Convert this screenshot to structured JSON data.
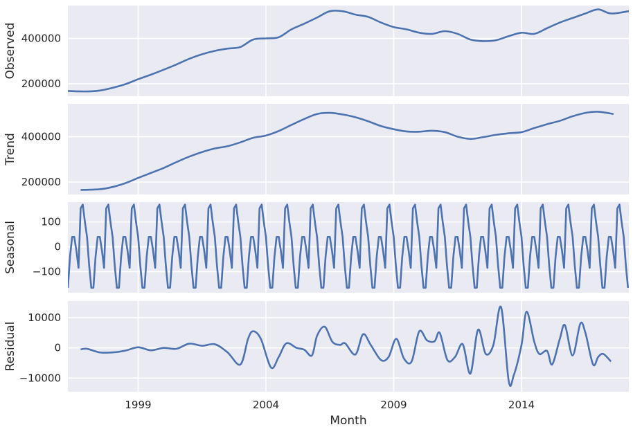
{
  "figure": {
    "background": "#ffffff",
    "panel_bg": "#eaeaf2",
    "grid_color": "#ffffff",
    "line_color": "#4c72b0"
  },
  "chart_data": [
    {
      "type": "line",
      "name_key": "observed",
      "ylabel": "Observed",
      "xlim": [
        1996.25,
        2018.2
      ],
      "ylim": [
        145000,
        545000
      ],
      "yticks": [
        200000,
        400000
      ],
      "yticklabels": [
        "200000",
        "400000"
      ],
      "x": [
        1996.25,
        1997.0,
        1997.5,
        1998.0,
        1998.5,
        1999.0,
        1999.5,
        2000.0,
        2000.5,
        2001.0,
        2001.5,
        2002.0,
        2002.5,
        2003.0,
        2003.5,
        2004.0,
        2004.5,
        2005.0,
        2005.5,
        2006.0,
        2006.5,
        2007.0,
        2007.5,
        2008.0,
        2008.5,
        2009.0,
        2009.5,
        2010.0,
        2010.5,
        2011.0,
        2011.5,
        2012.0,
        2012.5,
        2013.0,
        2013.5,
        2014.0,
        2014.5,
        2015.0,
        2015.5,
        2016.0,
        2016.5,
        2017.0,
        2017.5,
        2018.2
      ],
      "values": [
        168000,
        166000,
        170000,
        182000,
        198000,
        220000,
        240000,
        262000,
        285000,
        310000,
        330000,
        345000,
        355000,
        362000,
        395000,
        400000,
        405000,
        440000,
        465000,
        492000,
        520000,
        520000,
        505000,
        495000,
        470000,
        450000,
        440000,
        425000,
        420000,
        432000,
        420000,
        395000,
        388000,
        392000,
        410000,
        425000,
        420000,
        445000,
        470000,
        490000,
        510000,
        528000,
        510000,
        520000
      ]
    },
    {
      "type": "line",
      "name_key": "trend",
      "ylabel": "Trend",
      "xlim": [
        1996.25,
        2018.2
      ],
      "ylim": [
        145000,
        545000
      ],
      "yticks": [
        200000,
        400000
      ],
      "yticklabels": [
        "200000",
        "400000"
      ],
      "x": [
        1996.75,
        1997.5,
        1998.0,
        1998.5,
        1999.0,
        1999.5,
        2000.0,
        2000.5,
        2001.0,
        2001.5,
        2002.0,
        2002.5,
        2003.0,
        2003.5,
        2004.0,
        2004.5,
        2005.0,
        2005.5,
        2006.0,
        2006.5,
        2007.0,
        2007.5,
        2008.0,
        2008.5,
        2009.0,
        2009.5,
        2010.0,
        2010.5,
        2011.0,
        2011.5,
        2012.0,
        2012.5,
        2013.0,
        2013.5,
        2014.0,
        2014.5,
        2015.0,
        2015.5,
        2016.0,
        2016.5,
        2017.0,
        2017.6
      ],
      "values": [
        165000,
        168000,
        178000,
        195000,
        218000,
        240000,
        262000,
        288000,
        312000,
        332000,
        348000,
        358000,
        375000,
        395000,
        405000,
        425000,
        452000,
        478000,
        500000,
        505000,
        498000,
        486000,
        468000,
        447000,
        433000,
        423000,
        422000,
        426000,
        420000,
        400000,
        390000,
        398000,
        408000,
        415000,
        420000,
        438000,
        455000,
        470000,
        490000,
        505000,
        510000,
        500000
      ]
    },
    {
      "type": "line",
      "name_key": "seasonal",
      "ylabel": "Seasonal",
      "xlim": [
        1996.25,
        2018.2
      ],
      "ylim": [
        -185,
        180
      ],
      "yticks": [
        -100,
        0,
        100
      ],
      "yticklabels": [
        "−100",
        "0",
        "100"
      ],
      "period_months": 12,
      "start": 1996.25,
      "end": 2018.2,
      "pattern": [
        -165,
        -40,
        40,
        40,
        -15,
        -85,
        155,
        170,
        100,
        40,
        -75,
        -165
      ]
    },
    {
      "type": "line",
      "name_key": "residual",
      "ylabel": "Residual",
      "xlim": [
        1996.25,
        2018.2
      ],
      "ylim": [
        -14500,
        15500
      ],
      "yticks": [
        -10000,
        0,
        10000
      ],
      "yticklabels": [
        "−10000",
        "0",
        "10000"
      ],
      "x": [
        1996.75,
        1997.0,
        1997.5,
        1998.0,
        1998.5,
        1999.0,
        1999.5,
        2000.0,
        2000.5,
        2001.0,
        2001.5,
        2002.0,
        2002.5,
        2003.0,
        2003.3,
        2003.5,
        2003.8,
        2004.2,
        2004.5,
        2004.8,
        2005.2,
        2005.5,
        2005.8,
        2006.0,
        2006.3,
        2006.6,
        2006.9,
        2007.1,
        2007.5,
        2007.8,
        2008.1,
        2008.5,
        2008.8,
        2009.1,
        2009.4,
        2009.7,
        2010.0,
        2010.3,
        2010.6,
        2010.8,
        2011.1,
        2011.4,
        2011.7,
        2012.0,
        2012.3,
        2012.6,
        2012.9,
        2013.2,
        2013.5,
        2013.7,
        2014.0,
        2014.2,
        2014.5,
        2014.7,
        2015.0,
        2015.2,
        2015.5,
        2015.7,
        2016.0,
        2016.3,
        2016.5,
        2016.8,
        2017.0,
        2017.2,
        2017.5
      ],
      "values": [
        -500,
        -300,
        -1500,
        -1500,
        -900,
        200,
        -800,
        0,
        -300,
        1400,
        700,
        1200,
        -1500,
        -5500,
        3000,
        5500,
        3000,
        -6500,
        -3000,
        1500,
        0,
        -600,
        -2500,
        4000,
        7000,
        2000,
        1000,
        1500,
        -2200,
        4500,
        1000,
        -4000,
        -3000,
        3000,
        -3500,
        -4500,
        5500,
        2500,
        2200,
        5000,
        -4000,
        -3000,
        1200,
        -8500,
        6000,
        -2000,
        1000,
        13500,
        -11000,
        -9000,
        1000,
        12000,
        2000,
        -2000,
        -1000,
        -5500,
        3000,
        7500,
        -2500,
        8000,
        5000,
        -5500,
        -3000,
        -2000,
        -4500
      ]
    }
  ],
  "xaxis": {
    "xlabel": "Month",
    "ticks": [
      1999,
      2004,
      2009,
      2014
    ],
    "ticklabels": [
      "1999",
      "2004",
      "2009",
      "2014"
    ]
  }
}
